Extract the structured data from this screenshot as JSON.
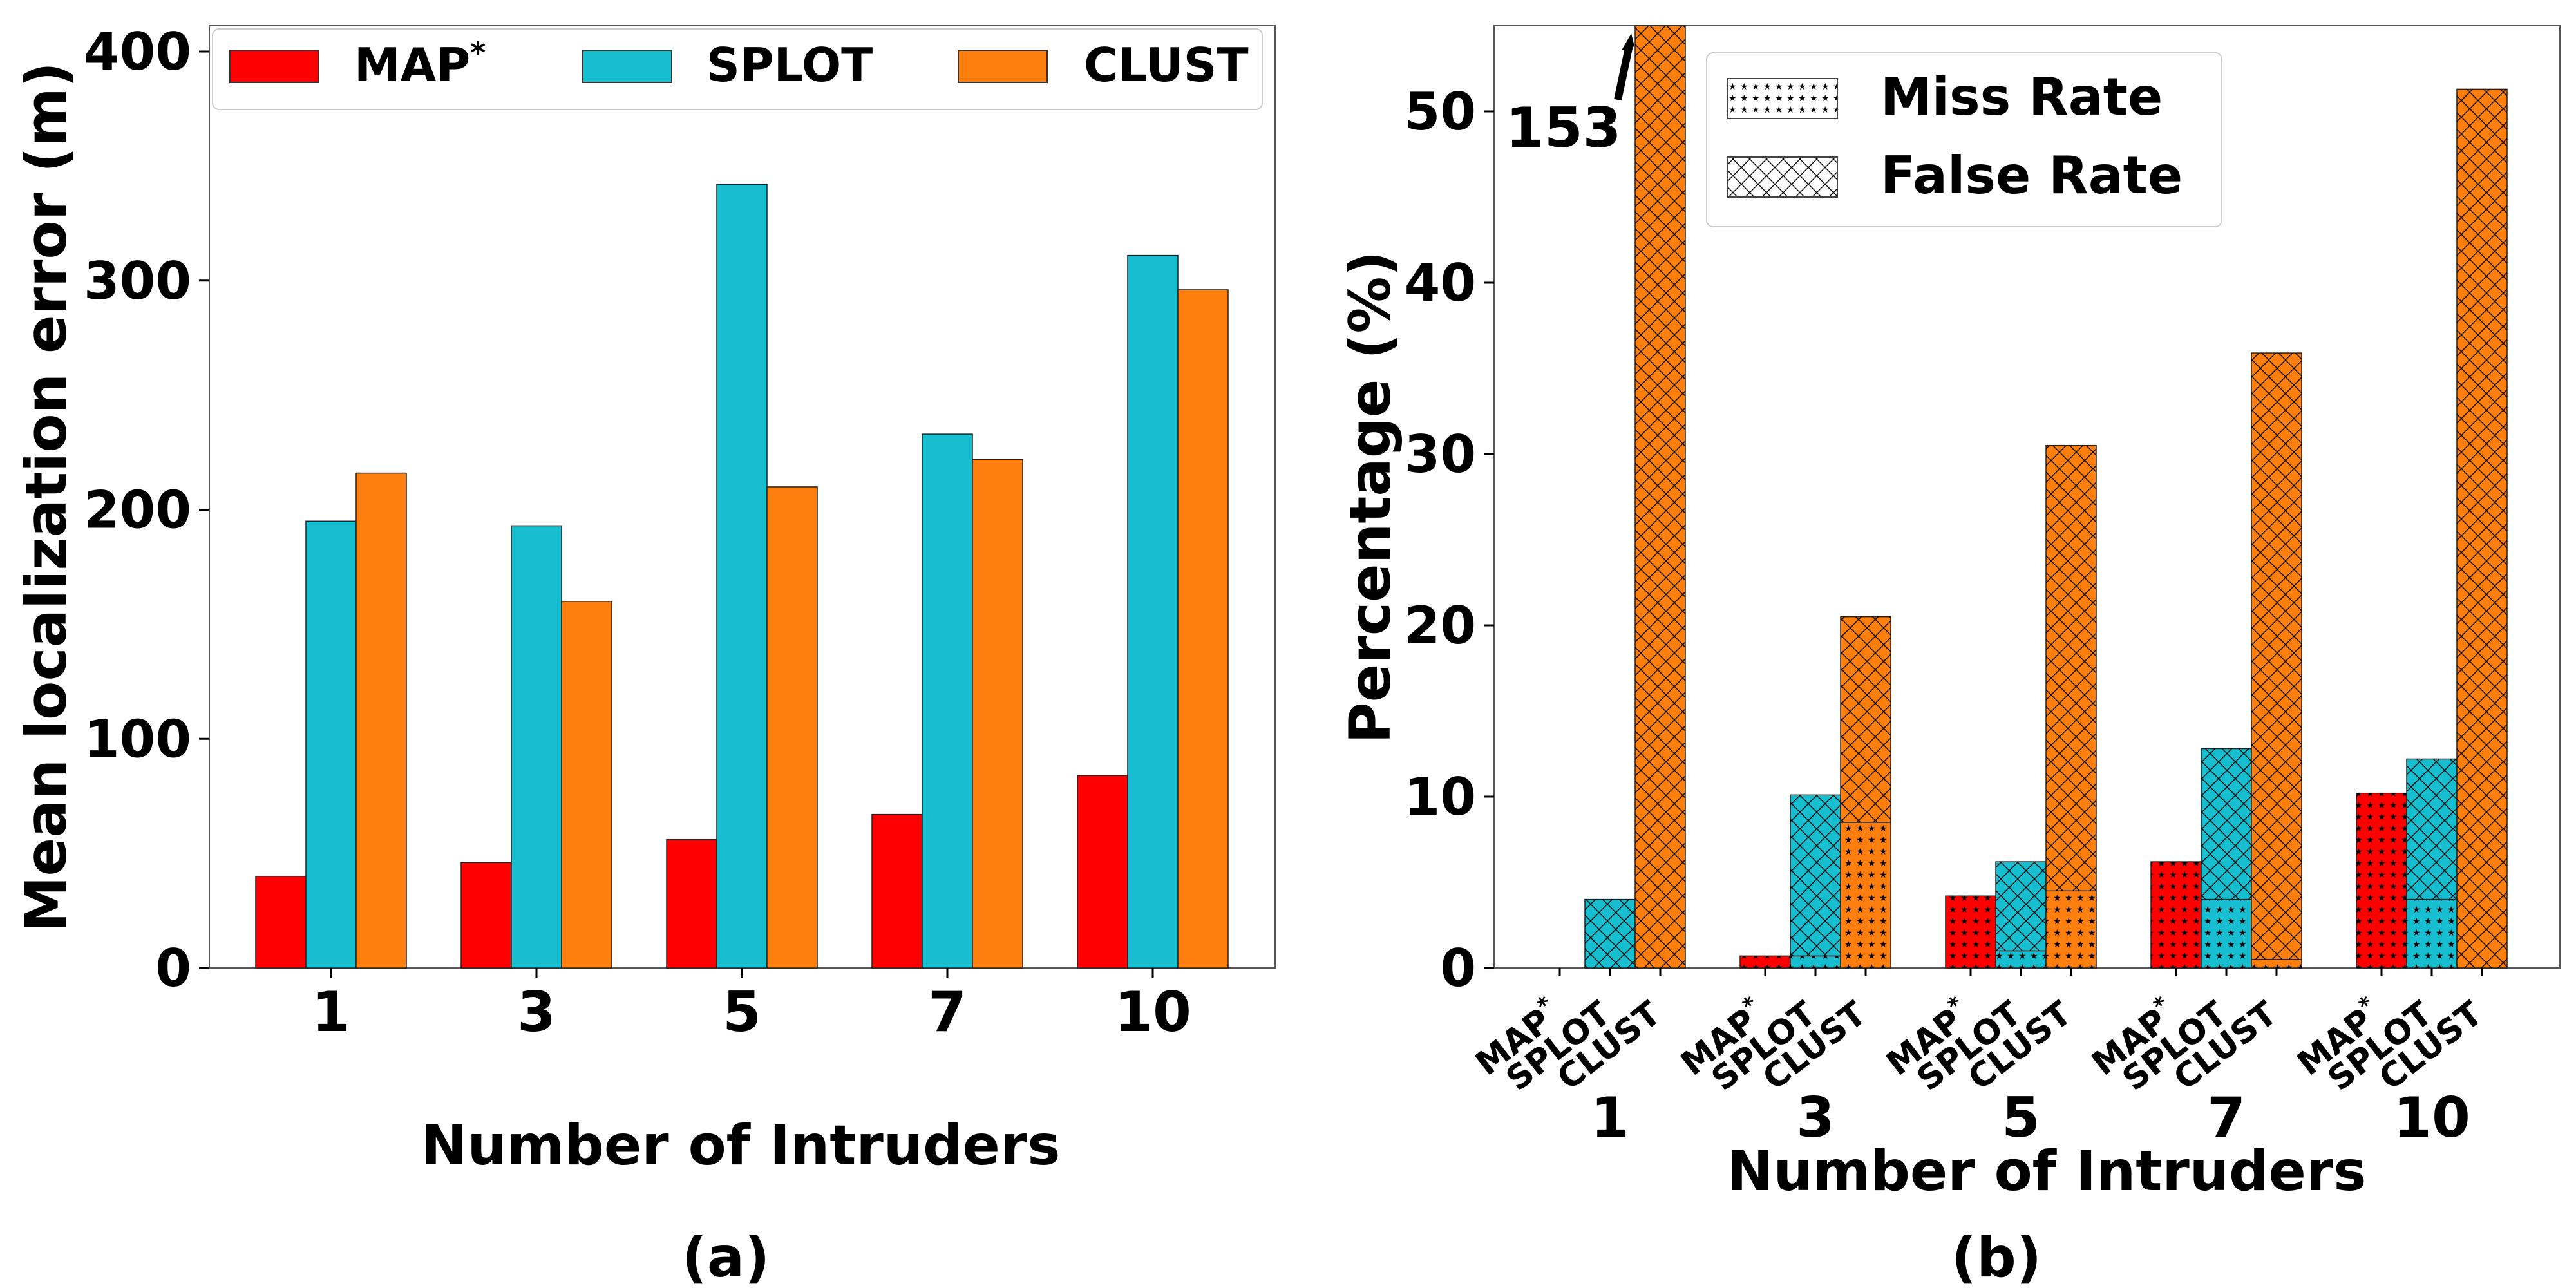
{
  "chart_data": [
    {
      "type": "bar",
      "categories": [
        "1",
        "3",
        "5",
        "7",
        "10"
      ],
      "series": [
        {
          "name": "MAP*",
          "color": "#ff0000",
          "values": [
            40,
            46,
            56,
            67,
            84
          ]
        },
        {
          "name": "SPLOT",
          "color": "#17becf",
          "values": [
            195,
            193,
            342,
            233,
            311
          ]
        },
        {
          "name": "CLUST",
          "color": "#ff7f0e",
          "values": [
            216,
            160,
            210,
            222,
            296
          ]
        }
      ],
      "xlabel": "Number of Intruders",
      "ylabel": "Mean localization error (m)",
      "ylim": [
        0,
        412
      ],
      "yticks": [
        "0",
        "100",
        "200",
        "300",
        "400"
      ],
      "legend": {
        "placement": "top",
        "labels": [
          "MAP",
          "SPLOT",
          "CLUST"
        ],
        "label_superscripts": [
          "*",
          "",
          ""
        ]
      },
      "caption": "(a)"
    },
    {
      "type": "bar",
      "stacked": true,
      "categories": [
        "1",
        "3",
        "5",
        "7",
        "10"
      ],
      "group_members": [
        "MAP",
        "SPLOT",
        "CLUST"
      ],
      "group_member_superscripts": [
        "*",
        "",
        ""
      ],
      "member_colors": [
        "#ff0000",
        "#17becf",
        "#ff7f0e"
      ],
      "series": [
        {
          "name": "Miss Rate",
          "hatch": "stars",
          "values": {
            "MAP*": [
              0,
              0.7,
              4.2,
              6.2,
              10.2
            ],
            "SPLOT": [
              0,
              0.7,
              1.0,
              4.0,
              4.0
            ],
            "CLUST": [
              0,
              8.5,
              4.5,
              0.5,
              0
            ]
          }
        },
        {
          "name": "False Rate",
          "hatch": "crosshatch",
          "values": {
            "MAP*": [
              0,
              0,
              0,
              0,
              0
            ],
            "SPLOT": [
              4.0,
              9.4,
              5.2,
              8.8,
              8.2
            ],
            "CLUST": [
              153,
              12.0,
              26.0,
              35.4,
              51.3
            ]
          }
        }
      ],
      "xlabel": "Number of Intruders",
      "ylabel": "Percentage (%)",
      "ylim": [
        0,
        55
      ],
      "yticks": [
        "0",
        "10",
        "20",
        "30",
        "40",
        "50"
      ],
      "annotation": {
        "text": "153"
      },
      "legend": {
        "placement": "top-center",
        "labels": [
          "Miss Rate",
          "False Rate"
        ]
      },
      "caption": "(b)"
    }
  ]
}
